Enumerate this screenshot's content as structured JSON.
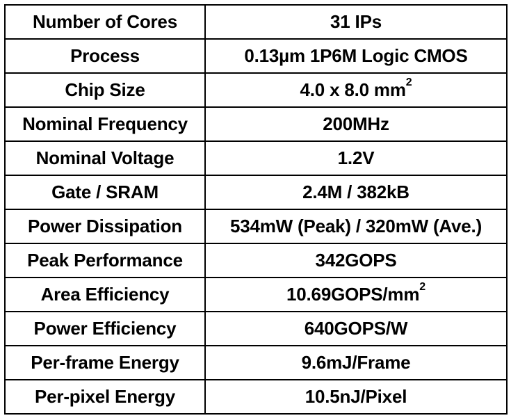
{
  "table": {
    "rows": [
      {
        "label": "Number of Cores",
        "value": "31 IPs"
      },
      {
        "label": "Process",
        "value": "0.13µm 1P6M Logic CMOS"
      },
      {
        "label": "Chip Size",
        "value": "4.0 x 8.0 mm",
        "sup": "2"
      },
      {
        "label": "Nominal Frequency",
        "value": "200MHz"
      },
      {
        "label": "Nominal Voltage",
        "value": "1.2V"
      },
      {
        "label": "Gate / SRAM",
        "value": "2.4M / 382kB"
      },
      {
        "label": "Power Dissipation",
        "value": "534mW (Peak) / 320mW (Ave.)"
      },
      {
        "label": "Peak Performance",
        "value": "342GOPS"
      },
      {
        "label": "Area Efficiency",
        "value": "10.69GOPS/mm",
        "sup": "2"
      },
      {
        "label": "Power Efficiency",
        "value": "640GOPS/W"
      },
      {
        "label": "Per-frame Energy",
        "value": "9.6mJ/Frame"
      },
      {
        "label": "Per-pixel Energy",
        "value": "10.5nJ/Pixel"
      }
    ]
  }
}
